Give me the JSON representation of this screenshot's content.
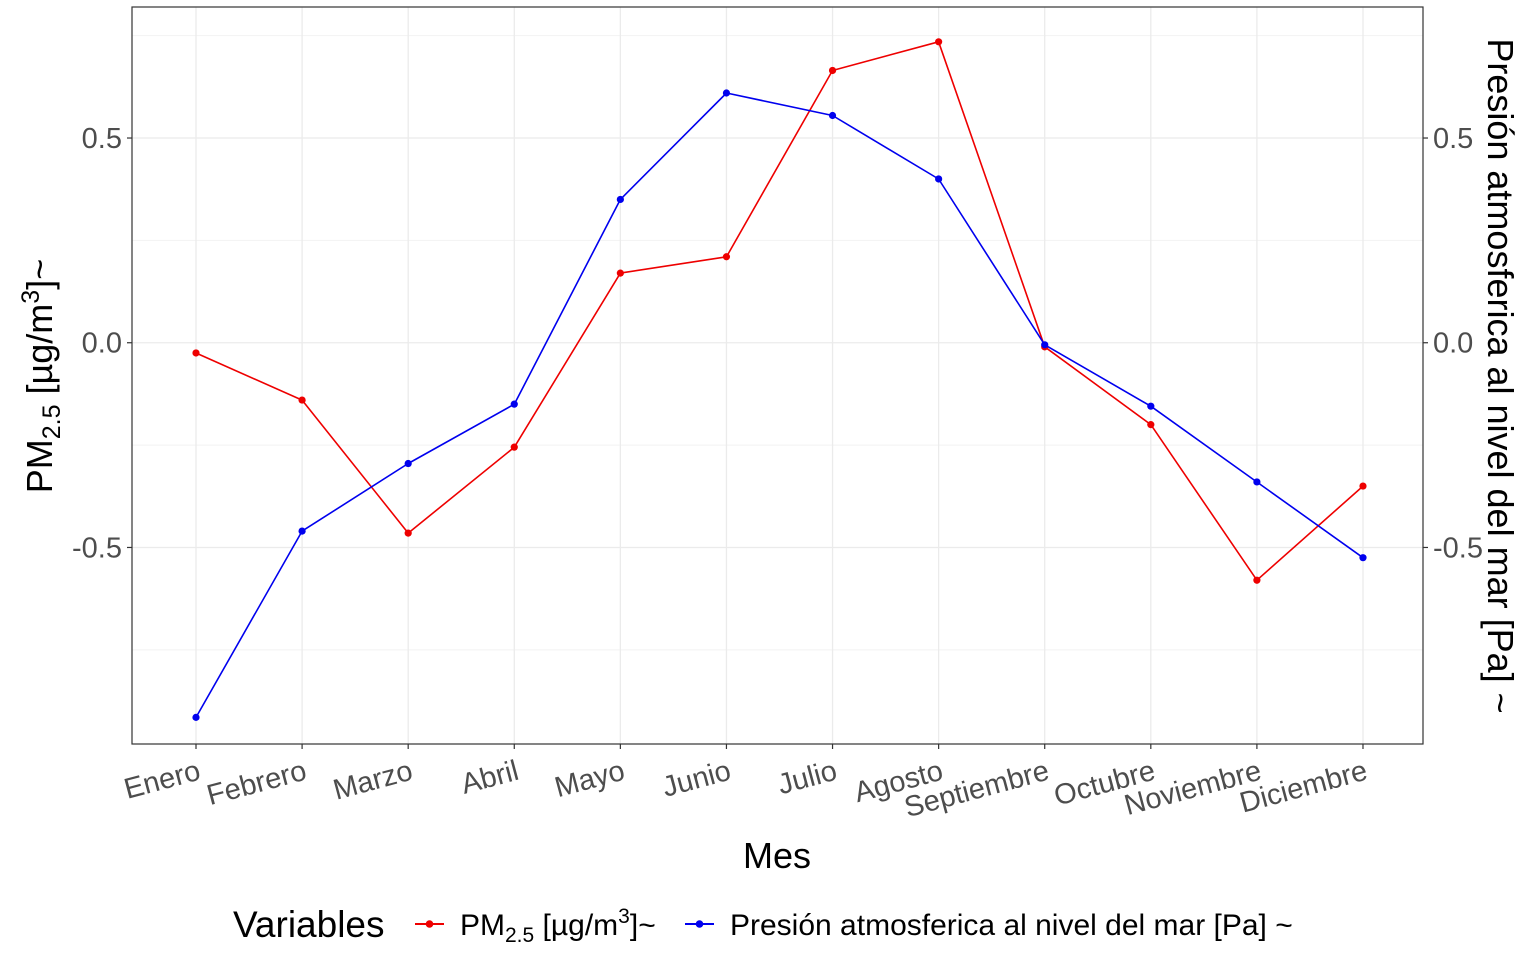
{
  "chart_data": {
    "type": "line",
    "xlabel": "Mes",
    "ylabel_left": {
      "base": "PM",
      "sub": "2.5",
      "mid": " [µg/m",
      "sup": "3",
      "end": "]~"
    },
    "ylabel_right": "Presión atmosferica al nivel del mar [Pa] ~",
    "categories": [
      "Enero",
      "Febrero",
      "Marzo",
      "Abril",
      "Mayo",
      "Junio",
      "Julio",
      "Agosto",
      "Septiembre",
      "Octubre",
      "Noviembre",
      "Diciembre"
    ],
    "ylim": [
      -0.98,
      0.82
    ],
    "y_ticks": [
      -0.5,
      0.0,
      0.5
    ],
    "y_tick_labels": [
      "-0.5",
      "0.0",
      "0.5"
    ],
    "grid": true,
    "legend": {
      "title": "Variables",
      "placement": "bottom",
      "pm_label": {
        "base": "PM",
        "sub": "2.5",
        "mid": " [µg/m",
        "sup": "3",
        "end": "]~"
      },
      "pres_label": "Presión atmosferica al nivel del mar [Pa] ~"
    },
    "series": [
      {
        "key": "pm25",
        "color": "#ee0000",
        "values": [
          -0.025,
          -0.14,
          -0.465,
          -0.255,
          0.17,
          0.21,
          0.665,
          0.735,
          -0.01,
          -0.2,
          -0.58,
          -0.35
        ]
      },
      {
        "key": "presion",
        "color": "#0000ee",
        "values": [
          -0.915,
          -0.46,
          -0.295,
          -0.15,
          0.35,
          0.61,
          0.555,
          0.4,
          -0.005,
          -0.155,
          -0.34,
          -0.525
        ]
      }
    ]
  }
}
